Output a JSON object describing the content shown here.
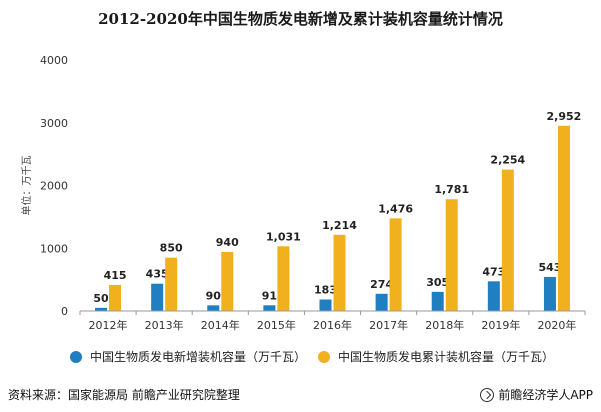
{
  "chart_data": {
    "type": "bar",
    "title": "2012-2020年中国生物质发电新增及累计装机容量统计情况",
    "ylabel": "单位：万千瓦",
    "xlabel": "",
    "categories": [
      "2012年",
      "2013年",
      "2014年",
      "2015年",
      "2016年",
      "2017年",
      "2018年",
      "2019年",
      "2020年"
    ],
    "ylim": [
      0,
      4000
    ],
    "yticks": [
      "0",
      "1000",
      "2000",
      "3000",
      "4000"
    ],
    "grid": false,
    "legend_position": "bottom",
    "series": [
      {
        "name": "中国生物质发电新增装机容量（万千瓦）",
        "color": "#1f7fc0",
        "values": [
          50,
          435,
          90,
          91,
          183,
          274,
          305,
          473,
          543
        ],
        "labels": [
          "50",
          "435",
          "90",
          "91",
          "183",
          "274",
          "305",
          "473",
          "543"
        ]
      },
      {
        "name": "中国生物质发电累计装机容量（万千瓦）",
        "color": "#f1b11f",
        "values": [
          415,
          850,
          940,
          1031,
          1214,
          1476,
          1781,
          2254,
          2952
        ],
        "labels": [
          "415",
          "850",
          "940",
          "1,031",
          "1,214",
          "1,476",
          "1,781",
          "2,254",
          "2,952"
        ]
      }
    ]
  },
  "footer": {
    "source": "资料来源：国家能源局 前瞻产业研究院整理",
    "brand": "前瞻经济学人APP"
  }
}
